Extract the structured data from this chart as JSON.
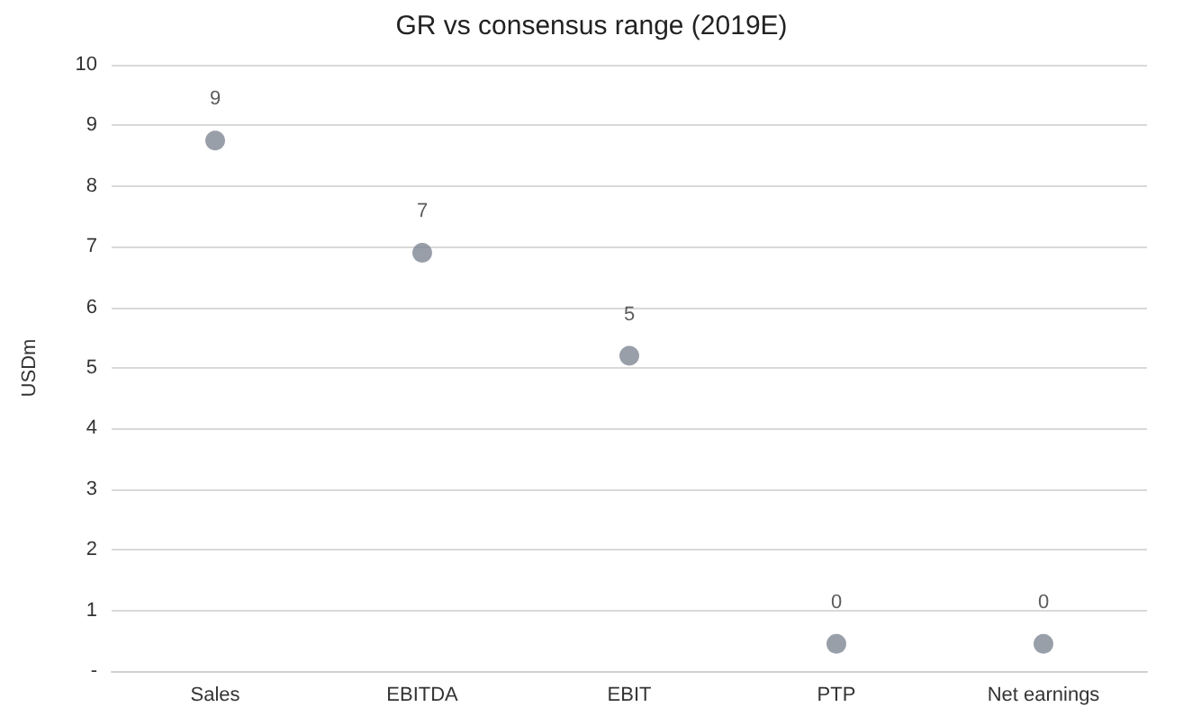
{
  "chart_data": {
    "type": "scatter",
    "title": "GR vs consensus range (2019E)",
    "ylabel": "USDm",
    "categories": [
      "Sales",
      "EBITDA",
      "EBIT",
      "PTP",
      "Net earnings"
    ],
    "values": [
      8.75,
      6.9,
      5.2,
      0.45,
      0.45
    ],
    "value_labels": [
      "9",
      "7",
      "5",
      "0",
      "0"
    ],
    "color": "#7f8794",
    "marker": "circle",
    "ylim": [
      0,
      10
    ],
    "yticks": [
      {
        "value": 0,
        "label": "-"
      },
      1,
      2,
      3,
      4,
      5,
      6,
      7,
      8,
      9,
      10
    ],
    "grid": "y"
  }
}
